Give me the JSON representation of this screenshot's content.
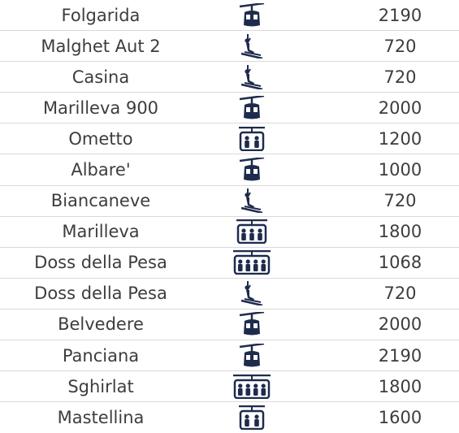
{
  "colors": {
    "icon": "#1e2b4d",
    "text": "#3d3d3d",
    "divider": "#d9d9d9"
  },
  "rows": [
    {
      "name": "Folgarida",
      "icon": "gondola-icon",
      "capacity": "2190"
    },
    {
      "name": "Malghet Aut 2",
      "icon": "ski-lift-icon",
      "capacity": "720"
    },
    {
      "name": "Casina",
      "icon": "ski-lift-icon",
      "capacity": "720"
    },
    {
      "name": "Marilleva 900",
      "icon": "gondola-icon",
      "capacity": "2000"
    },
    {
      "name": "Ometto",
      "icon": "chairlift-2-icon",
      "capacity": "1200"
    },
    {
      "name": "Albare'",
      "icon": "gondola-icon",
      "capacity": "1000"
    },
    {
      "name": "Biancaneve",
      "icon": "ski-lift-icon",
      "capacity": "720"
    },
    {
      "name": "Marilleva",
      "icon": "chairlift-3-icon",
      "capacity": "1800"
    },
    {
      "name": "Doss della Pesa",
      "icon": "chairlift-4-icon",
      "capacity": "1068"
    },
    {
      "name": "Doss della Pesa",
      "icon": "ski-lift-icon",
      "capacity": "720"
    },
    {
      "name": "Belvedere",
      "icon": "gondola-icon",
      "capacity": "2000"
    },
    {
      "name": "Panciana",
      "icon": "gondola-icon",
      "capacity": "2190"
    },
    {
      "name": "Sghirlat",
      "icon": "chairlift-4-icon",
      "capacity": "1800"
    },
    {
      "name": "Mastellina",
      "icon": "chairlift-2-icon",
      "capacity": "1600"
    }
  ]
}
